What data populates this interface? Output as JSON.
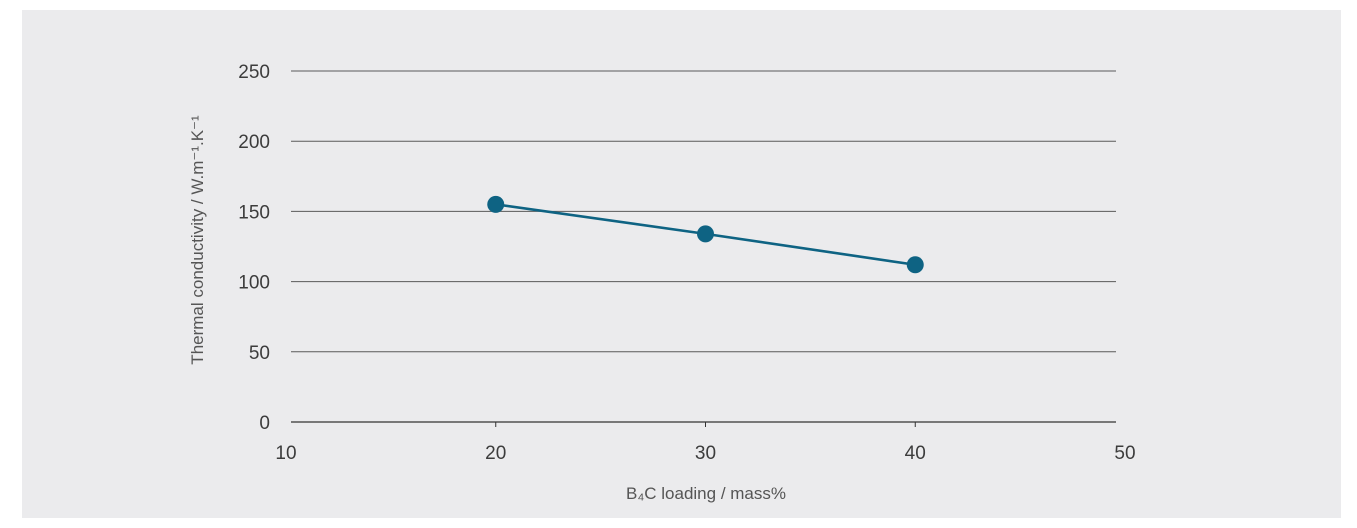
{
  "chart_data": {
    "type": "line",
    "xlabel": "B₄C loading / mass%",
    "ylabel": "Thermal conductivity / W.m⁻¹.K⁻¹",
    "xlim": [
      10,
      50
    ],
    "ylim": [
      0,
      250
    ],
    "x_ticks": [
      "10",
      "20",
      "30",
      "40",
      "50"
    ],
    "y_ticks": [
      "0",
      "50",
      "100",
      "150",
      "200",
      "250"
    ],
    "grid": true,
    "series": [
      {
        "x": [
          20,
          30,
          40
        ],
        "values": [
          155,
          134,
          112
        ],
        "color": "#0e6383"
      }
    ]
  },
  "colors": {
    "background": "#ebebed",
    "page": "#ffffff",
    "series": "#0e6383"
  }
}
